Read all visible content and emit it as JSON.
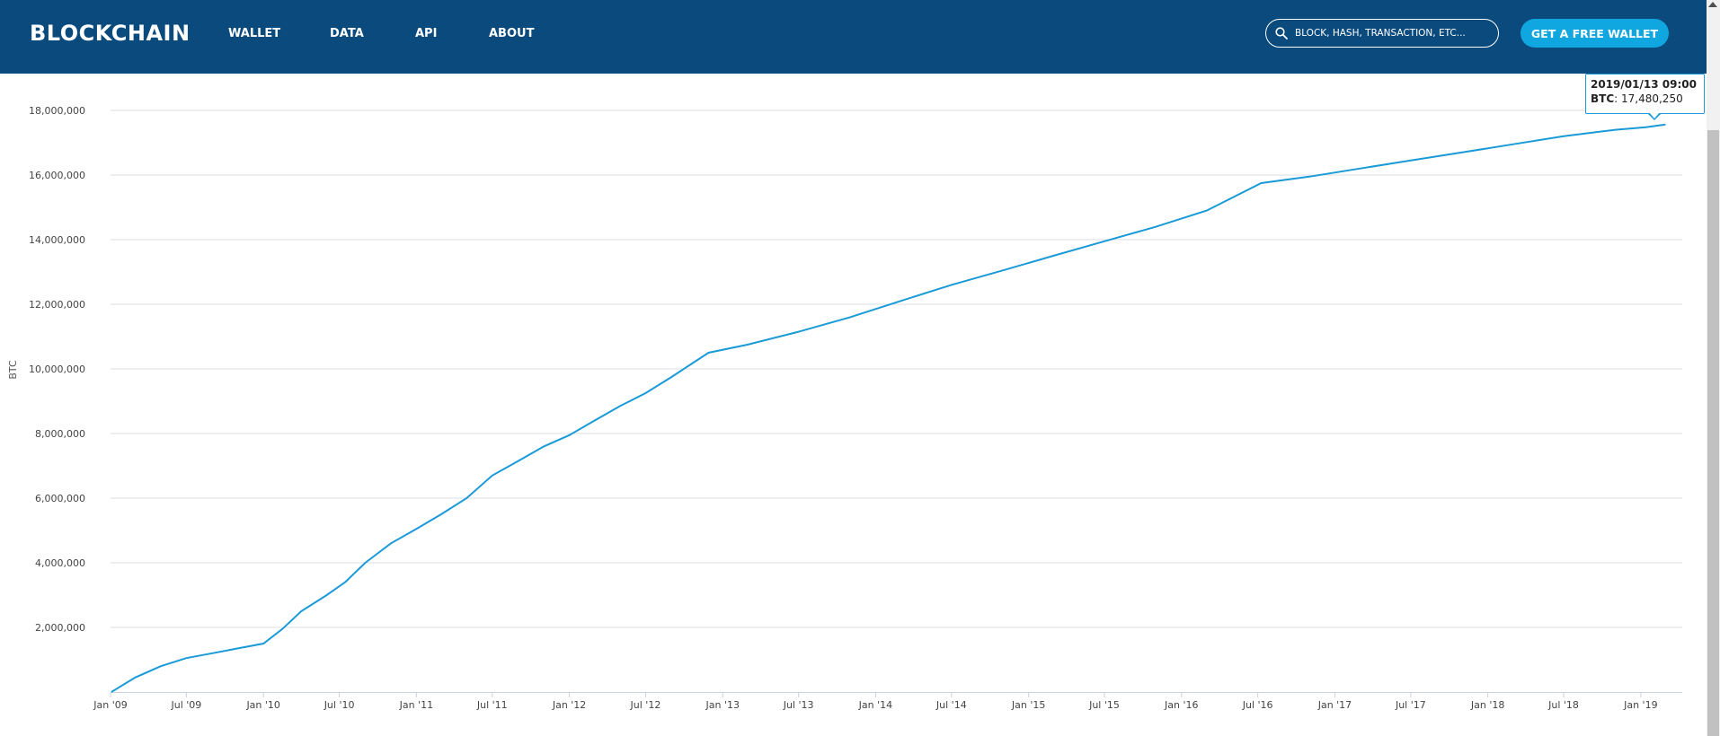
{
  "header": {
    "brand": "BLOCKCHAIN",
    "nav": [
      {
        "label": "WALLET"
      },
      {
        "label": "DATA"
      },
      {
        "label": "API"
      },
      {
        "label": "ABOUT"
      }
    ],
    "search_placeholder": "BLOCK, HASH, TRANSACTION, ETC...",
    "cta_label": "GET A FREE WALLET",
    "bg_color": "#0a4a7d",
    "cta_color": "#10a7e0"
  },
  "tooltip": {
    "date": "2019/01/13 09:00",
    "label": "BTC",
    "value": "17,480,250"
  },
  "chart_data": {
    "type": "line",
    "ylabel": "BTC",
    "xlabel": "",
    "title": "",
    "ylim": [
      0,
      18000000
    ],
    "yticks": [
      2000000,
      4000000,
      6000000,
      8000000,
      10000000,
      12000000,
      14000000,
      16000000,
      18000000
    ],
    "ytick_labels": [
      "2,000,000",
      "4,000,000",
      "6,000,000",
      "8,000,000",
      "10,000,000",
      "12,000,000",
      "14,000,000",
      "16,000,000",
      "18,000,000"
    ],
    "xtick_labels": [
      "Jan '09",
      "Jul '09",
      "Jan '10",
      "Jul '10",
      "Jan '11",
      "Jul '11",
      "Jan '12",
      "Jul '12",
      "Jan '13",
      "Jul '13",
      "Jan '14",
      "Jul '14",
      "Jan '15",
      "Jul '15",
      "Jan '16",
      "Jul '16",
      "Jan '17",
      "Jul '17",
      "Jan '18",
      "Jul '18",
      "Jan '19"
    ],
    "xlim": [
      "2009-01-01",
      "2019-04-10"
    ],
    "line_color": "#1a9ad6",
    "grid": true,
    "series": [
      {
        "x": [
          "2009-01-03",
          "2009-03-01",
          "2009-05-01",
          "2009-07-01",
          "2009-09-01",
          "2009-11-01",
          "2010-01-01",
          "2010-02-15",
          "2010-04-01",
          "2010-06-01",
          "2010-07-15",
          "2010-09-01",
          "2010-11-01",
          "2011-01-01",
          "2011-03-01",
          "2011-05-01",
          "2011-07-01",
          "2011-09-01",
          "2011-11-01",
          "2012-01-01",
          "2012-03-01",
          "2012-05-01",
          "2012-07-01",
          "2012-09-01",
          "2012-11-28",
          "2013-03-01",
          "2013-07-01",
          "2013-11-01",
          "2014-03-01",
          "2014-07-01",
          "2014-11-01",
          "2015-03-01",
          "2015-07-01",
          "2015-11-01",
          "2016-03-01",
          "2016-07-09",
          "2016-11-01",
          "2017-03-01",
          "2017-07-01",
          "2017-11-01",
          "2018-03-01",
          "2018-07-01",
          "2018-11-01",
          "2019-01-13",
          "2019-03-01"
        ],
        "y": [
          50,
          450000,
          800000,
          1050000,
          1200000,
          1350000,
          1500000,
          1950000,
          2500000,
          3000000,
          3400000,
          4000000,
          4600000,
          5050000,
          5500000,
          6000000,
          6700000,
          7150000,
          7600000,
          7950000,
          8400000,
          8850000,
          9250000,
          9750000,
          10500000,
          10750000,
          11150000,
          11600000,
          12100000,
          12600000,
          13050000,
          13500000,
          13950000,
          14400000,
          14900000,
          15750000,
          15950000,
          16200000,
          16450000,
          16700000,
          16950000,
          17200000,
          17400000,
          17480250,
          17560000
        ]
      }
    ]
  }
}
